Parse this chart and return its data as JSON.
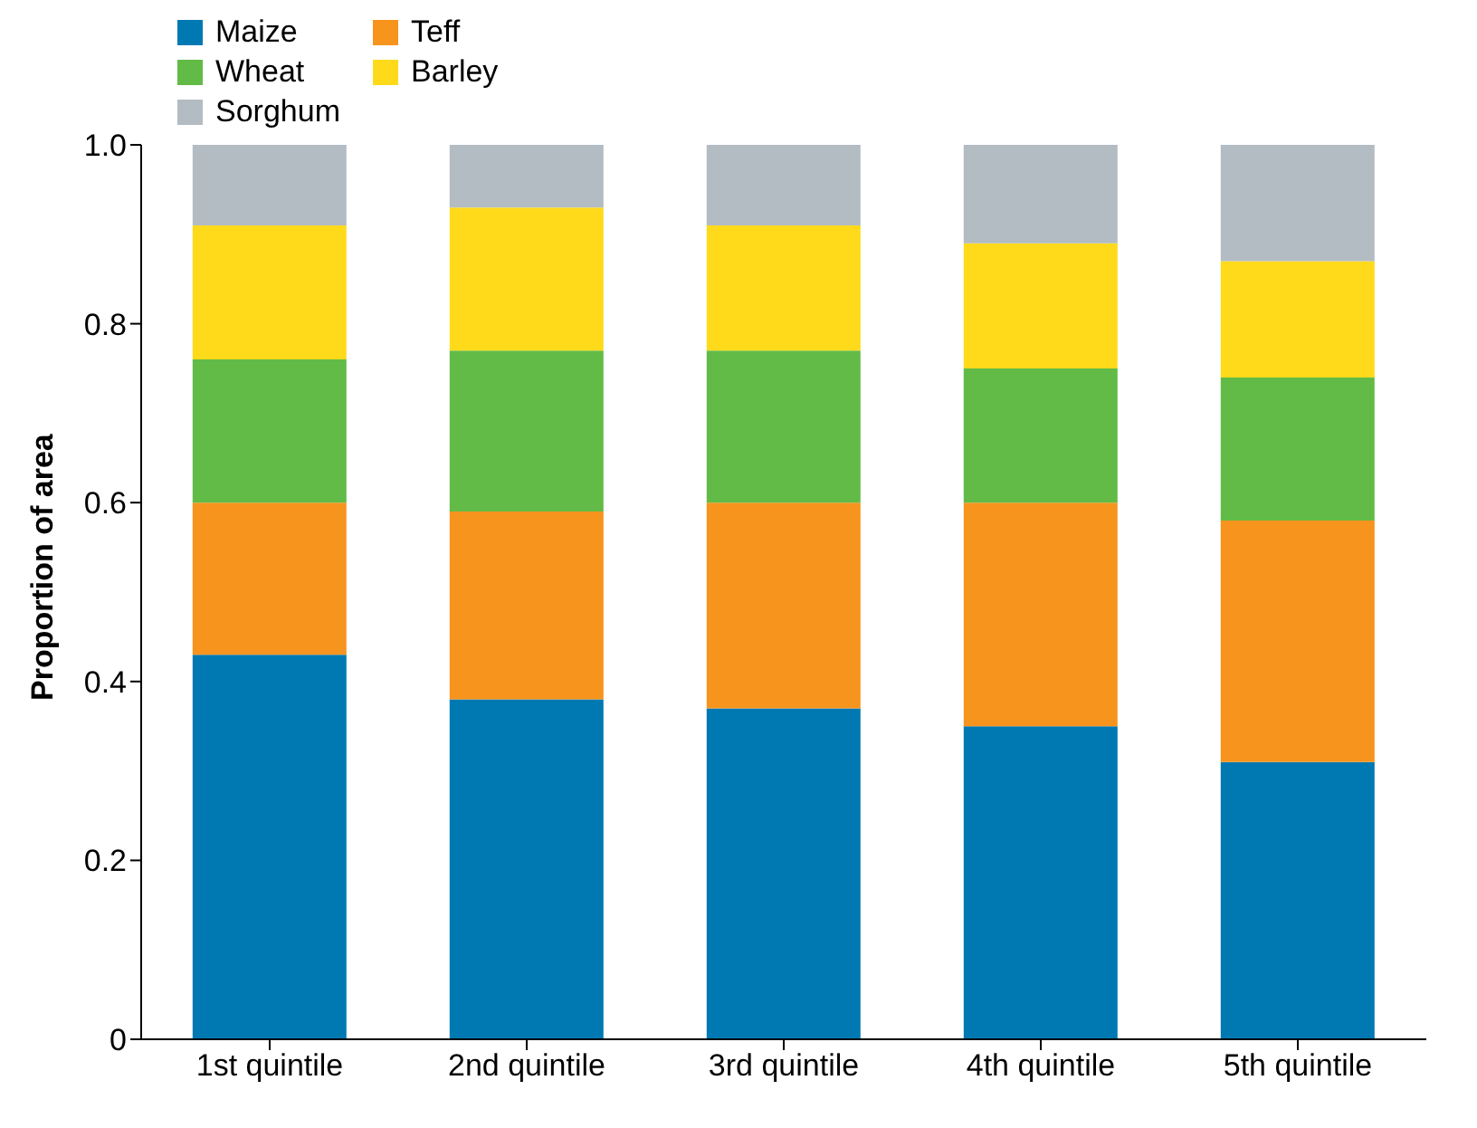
{
  "chart_data": {
    "type": "bar",
    "stacked": true,
    "ylabel": "Proportion of area",
    "categories": [
      "1st quintile",
      "2nd quintile",
      "3rd quintile",
      "4th quintile",
      "5th quintile"
    ],
    "series": [
      {
        "name": "Maize",
        "color": "#0079b3",
        "values": [
          0.43,
          0.38,
          0.37,
          0.35,
          0.31
        ]
      },
      {
        "name": "Teff",
        "color": "#f7941d",
        "values": [
          0.17,
          0.21,
          0.23,
          0.25,
          0.27
        ]
      },
      {
        "name": "Wheat",
        "color": "#62bb46",
        "values": [
          0.16,
          0.18,
          0.17,
          0.15,
          0.16
        ]
      },
      {
        "name": "Barley",
        "color": "#ffda1a",
        "values": [
          0.15,
          0.16,
          0.14,
          0.14,
          0.13
        ]
      },
      {
        "name": "Sorghum",
        "color": "#b3bcc3",
        "values": [
          0.09,
          0.07,
          0.09,
          0.11,
          0.13
        ]
      }
    ],
    "ylim": [
      0,
      1
    ],
    "yticks": [
      0,
      0.2,
      0.4,
      0.6,
      0.8,
      {
        "value": 1,
        "label": "1.0"
      }
    ],
    "grid": false,
    "legend": "top left"
  }
}
